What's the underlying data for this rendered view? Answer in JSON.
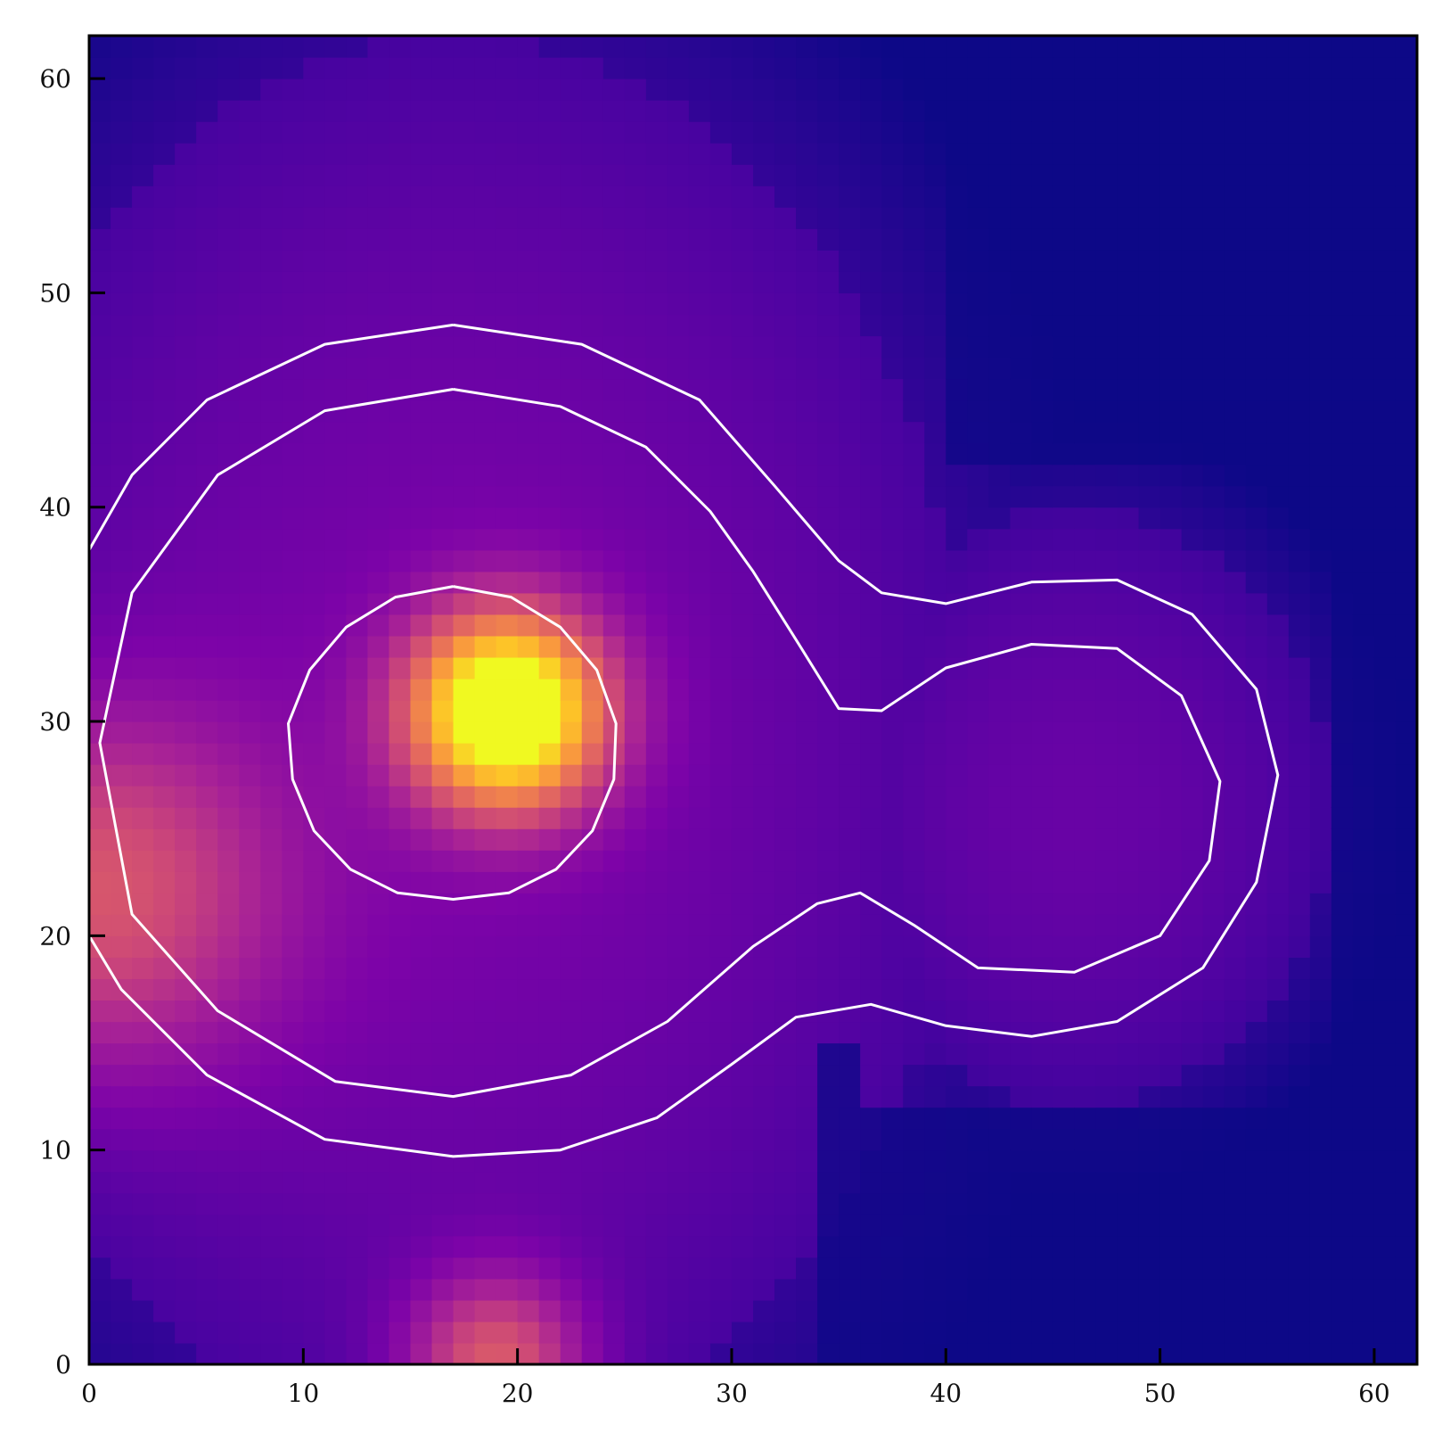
{
  "chart_data": {
    "type": "heatmap",
    "title": "",
    "xlabel": "",
    "ylabel": "",
    "grid": false,
    "legend": "none",
    "colormap": "plasma",
    "xlim": [
      0,
      62
    ],
    "ylim": [
      0,
      62
    ],
    "x_ticks": [
      0,
      10,
      20,
      30,
      40,
      50,
      60
    ],
    "y_ticks": [
      0,
      10,
      20,
      30,
      40,
      50,
      60
    ],
    "x_tick_labels": [
      "0",
      "10",
      "20",
      "30",
      "40",
      "50",
      "60"
    ],
    "y_tick_labels": [
      "0",
      "10",
      "20",
      "30",
      "40",
      "50",
      "60"
    ],
    "grid_size": [
      62,
      62
    ],
    "intensity_sources": [
      {
        "x": 19.5,
        "y": 30.5,
        "peak": 1.0,
        "spread": 3.2
      },
      {
        "x": 19.0,
        "y": 0.0,
        "peak": 0.42,
        "spread": 3.0
      },
      {
        "x": 0.0,
        "y": 22.0,
        "peak": 0.38,
        "spread": 6.0
      }
    ],
    "background_regions": [
      {
        "name": "left-cloud",
        "x": 17,
        "y": 29,
        "rx": 24,
        "ry": 33,
        "level": 0.2
      },
      {
        "name": "right-lobe",
        "x": 46,
        "y": 26,
        "rx": 12,
        "ry": 14,
        "level": 0.16
      }
    ],
    "contours": [
      {
        "name": "inner-core",
        "points": [
          [
            17,
            36.3
          ],
          [
            19.7,
            35.8
          ],
          [
            22.0,
            34.4
          ],
          [
            23.7,
            32.4
          ],
          [
            24.6,
            29.9
          ],
          [
            24.5,
            27.3
          ],
          [
            23.5,
            24.9
          ],
          [
            21.8,
            23.1
          ],
          [
            19.6,
            22.0
          ],
          [
            17,
            21.7
          ],
          [
            14.4,
            22.0
          ],
          [
            12.2,
            23.1
          ],
          [
            10.5,
            24.9
          ],
          [
            9.5,
            27.3
          ],
          [
            9.3,
            29.9
          ],
          [
            10.3,
            32.4
          ],
          [
            12.0,
            34.4
          ],
          [
            14.3,
            35.8
          ],
          [
            17,
            36.3
          ]
        ]
      },
      {
        "name": "middle-contour",
        "points": [
          [
            17,
            45.5
          ],
          [
            22.0,
            44.7
          ],
          [
            26.0,
            42.8
          ],
          [
            29.0,
            39.8
          ],
          [
            31.0,
            37.0
          ],
          [
            33.2,
            33.5
          ],
          [
            35.0,
            30.6
          ],
          [
            37.0,
            30.5
          ],
          [
            40.0,
            32.5
          ],
          [
            44.0,
            33.6
          ],
          [
            48.0,
            33.4
          ],
          [
            51.0,
            31.2
          ],
          [
            52.8,
            27.2
          ],
          [
            52.3,
            23.5
          ],
          [
            50.0,
            20.0
          ],
          [
            46.0,
            18.3
          ],
          [
            41.5,
            18.5
          ],
          [
            38.5,
            20.5
          ],
          [
            36.0,
            22.0
          ],
          [
            34.0,
            21.5
          ],
          [
            31.0,
            19.5
          ],
          [
            27.0,
            16.0
          ],
          [
            22.5,
            13.5
          ],
          [
            17,
            12.5
          ],
          [
            11.5,
            13.2
          ],
          [
            6.0,
            16.5
          ],
          [
            2.0,
            21.0
          ],
          [
            0.5,
            29.0
          ],
          [
            2.0,
            36.0
          ],
          [
            6.0,
            41.5
          ],
          [
            11.0,
            44.5
          ],
          [
            17,
            45.5
          ]
        ]
      },
      {
        "name": "outer-contour",
        "points": [
          [
            17,
            48.5
          ],
          [
            23.0,
            47.6
          ],
          [
            28.5,
            45.0
          ],
          [
            32.0,
            41.0
          ],
          [
            35.0,
            37.5
          ],
          [
            37.0,
            36.0
          ],
          [
            40.0,
            35.5
          ],
          [
            44.0,
            36.5
          ],
          [
            48.0,
            36.6
          ],
          [
            51.5,
            35.0
          ],
          [
            54.5,
            31.5
          ],
          [
            55.5,
            27.5
          ],
          [
            54.5,
            22.5
          ],
          [
            52.0,
            18.5
          ],
          [
            48.0,
            16.0
          ],
          [
            44.0,
            15.3
          ],
          [
            40.0,
            15.8
          ],
          [
            36.5,
            16.8
          ],
          [
            33.0,
            16.2
          ],
          [
            30.0,
            14.0
          ],
          [
            26.5,
            11.5
          ],
          [
            22.0,
            10.0
          ],
          [
            17,
            9.7
          ],
          [
            11.0,
            10.5
          ],
          [
            5.5,
            13.5
          ],
          [
            1.5,
            17.5
          ],
          [
            0,
            20.0
          ]
        ]
      },
      {
        "name": "outer-contour-top",
        "points": [
          [
            0,
            38.0
          ],
          [
            2.0,
            41.5
          ],
          [
            5.5,
            45.0
          ],
          [
            11.0,
            47.6
          ],
          [
            17,
            48.5
          ]
        ]
      }
    ]
  }
}
